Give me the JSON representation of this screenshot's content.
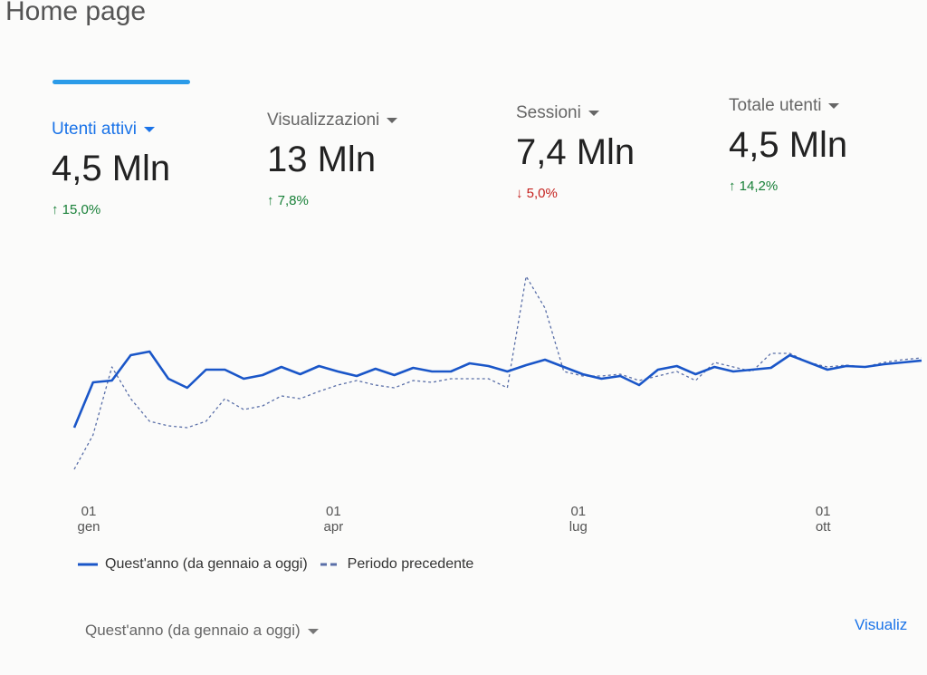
{
  "header": {
    "title": "Home page"
  },
  "metrics": [
    {
      "label": "Utenti attivi",
      "value": "4,5 Mln",
      "change": "15,0%",
      "trend": "up",
      "selected": true
    },
    {
      "label": "Visualizzazioni",
      "value": "13 Mln",
      "change": "7,8%",
      "trend": "up",
      "selected": false
    },
    {
      "label": "Sessioni",
      "value": "7,4 Mln",
      "change": "5,0%",
      "trend": "down",
      "selected": false
    },
    {
      "label": "Totale utenti",
      "value": "4,5 Mln",
      "change": "14,2%",
      "trend": "up",
      "selected": false
    }
  ],
  "chart_data": {
    "type": "line",
    "categories": [
      "01\ngen",
      null,
      null,
      null,
      null,
      null,
      null,
      null,
      null,
      null,
      null,
      null,
      null,
      "01\napr",
      null,
      null,
      null,
      null,
      null,
      null,
      null,
      null,
      null,
      null,
      null,
      null,
      "01\nlug",
      null,
      null,
      null,
      null,
      null,
      null,
      null,
      null,
      null,
      null,
      null,
      null,
      "01\nott",
      null,
      null,
      null,
      null,
      null,
      null
    ],
    "series": [
      {
        "name": "Quest'anno (da gennaio a oggi)",
        "color": "#1a56c8",
        "style": "solid",
        "values": [
          68,
          118,
          120,
          148,
          152,
          122,
          112,
          132,
          132,
          122,
          126,
          135,
          127,
          136,
          130,
          125,
          133,
          126,
          134,
          130,
          130,
          139,
          136,
          130,
          137,
          143,
          135,
          127,
          122,
          125,
          115,
          132,
          136,
          127,
          135,
          130,
          132,
          134,
          148,
          140,
          132,
          136,
          135,
          138,
          140,
          142
        ]
      },
      {
        "name": "Periodo precedente",
        "color": "#5a6fa8",
        "style": "dashed",
        "values": [
          22,
          60,
          135,
          100,
          75,
          70,
          68,
          75,
          100,
          88,
          92,
          103,
          100,
          108,
          115,
          120,
          115,
          112,
          120,
          118,
          122,
          122,
          122,
          112,
          235,
          200,
          130,
          125,
          125,
          127,
          120,
          125,
          130,
          120,
          140,
          135,
          130,
          150,
          150,
          140,
          135,
          137,
          135,
          140,
          143,
          145
        ]
      }
    ]
  },
  "footer": {
    "period": "Quest'anno (da gennaio a oggi)",
    "link": "Visualiz"
  }
}
